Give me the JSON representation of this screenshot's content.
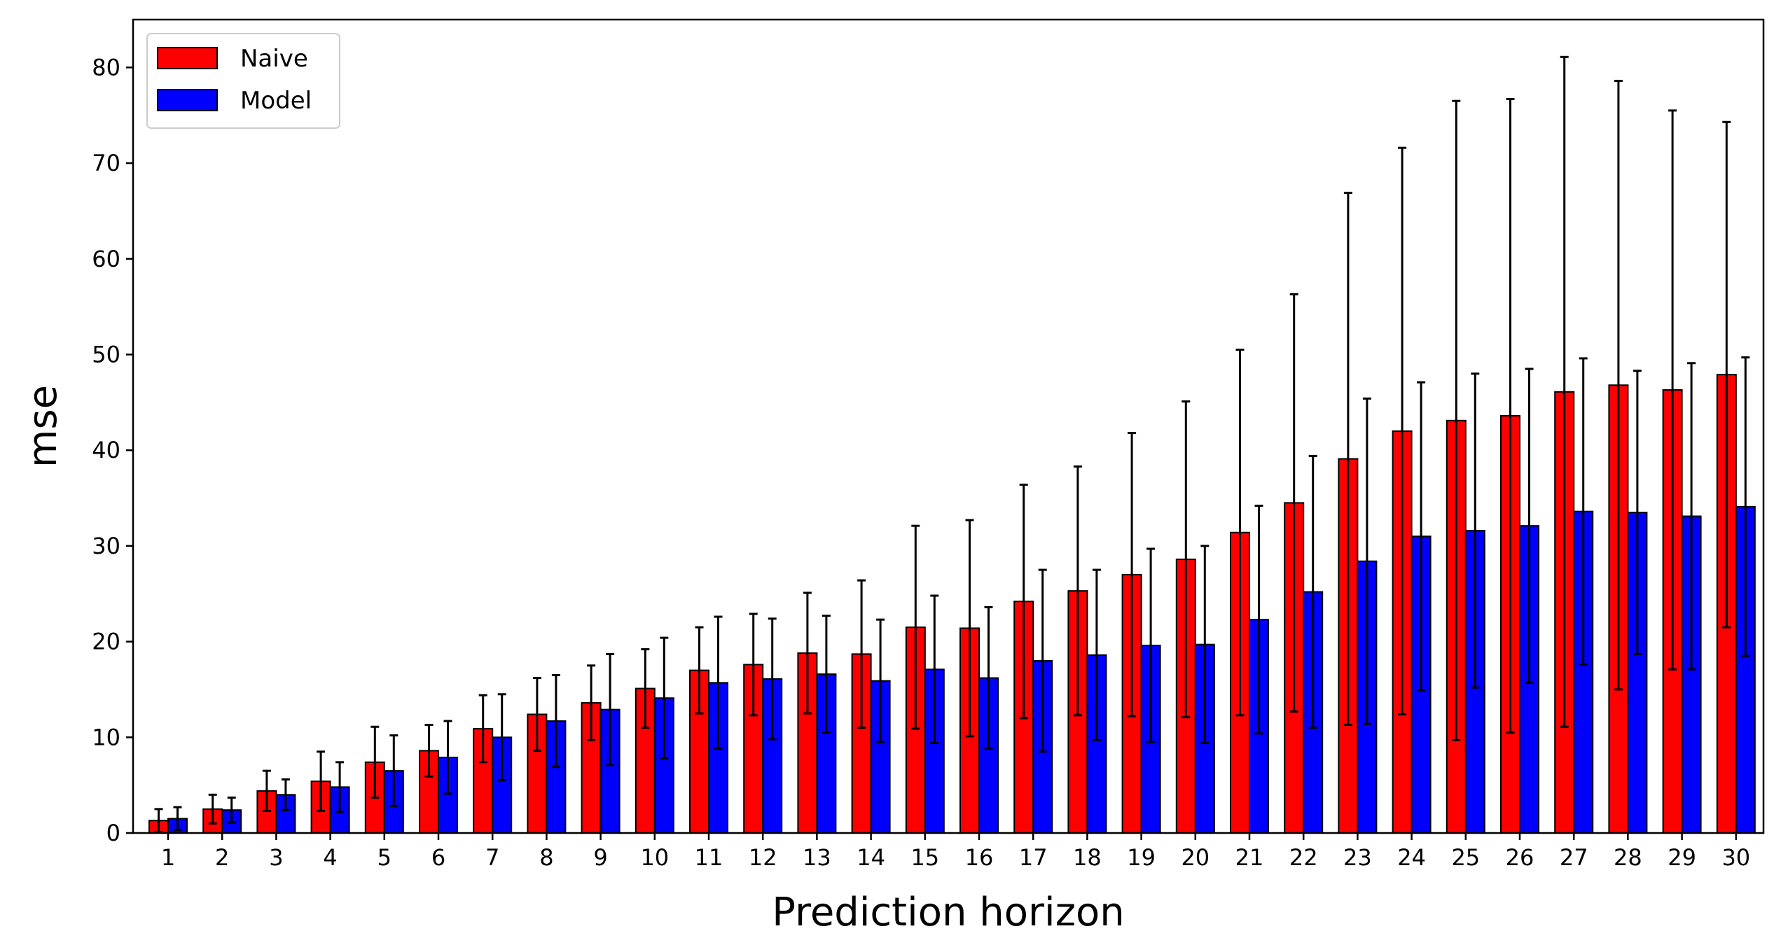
{
  "chart_data": {
    "type": "bar",
    "xlabel": "Prediction horizon",
    "ylabel": "mse",
    "ylim": [
      0,
      85
    ],
    "yticks": [
      0,
      10,
      20,
      30,
      40,
      50,
      60,
      70,
      80
    ],
    "grid": false,
    "legend_position": "top-left",
    "categories": [
      "1",
      "2",
      "3",
      "4",
      "5",
      "6",
      "7",
      "8",
      "9",
      "10",
      "11",
      "12",
      "13",
      "14",
      "15",
      "16",
      "17",
      "18",
      "19",
      "20",
      "21",
      "22",
      "23",
      "24",
      "25",
      "26",
      "27",
      "28",
      "29",
      "30"
    ],
    "series": [
      {
        "name": "Naive",
        "color": "#ff0000",
        "values": [
          1.3,
          2.5,
          4.4,
          5.4,
          7.4,
          8.6,
          10.9,
          12.4,
          13.6,
          15.1,
          17.0,
          17.6,
          18.8,
          18.7,
          21.5,
          21.4,
          24.2,
          25.3,
          27.0,
          28.6,
          31.4,
          34.5,
          39.1,
          42.0,
          43.1,
          43.6,
          46.1,
          46.8,
          46.3,
          47.9
        ],
        "error": [
          1.2,
          1.5,
          2.1,
          3.1,
          3.7,
          2.7,
          3.5,
          3.8,
          3.9,
          4.1,
          4.5,
          5.3,
          6.3,
          7.7,
          10.6,
          11.3,
          12.2,
          13.0,
          14.8,
          16.5,
          19.1,
          21.8,
          27.8,
          29.6,
          33.4,
          33.1,
          35.0,
          31.8,
          29.2,
          26.4
        ]
      },
      {
        "name": "Model",
        "color": "#0000ff",
        "values": [
          1.5,
          2.4,
          4.0,
          4.8,
          6.5,
          7.9,
          10.0,
          11.7,
          12.9,
          14.1,
          15.7,
          16.1,
          16.6,
          15.9,
          17.1,
          16.2,
          18.0,
          18.6,
          19.6,
          19.7,
          22.3,
          25.2,
          28.4,
          31.0,
          31.6,
          32.1,
          33.6,
          33.5,
          33.1,
          34.1
        ],
        "error": [
          1.2,
          1.3,
          1.6,
          2.6,
          3.7,
          3.8,
          4.5,
          4.8,
          5.8,
          6.3,
          6.9,
          6.3,
          6.1,
          6.4,
          7.7,
          7.4,
          9.5,
          8.9,
          10.1,
          10.3,
          11.9,
          14.2,
          17.0,
          16.1,
          16.4,
          16.4,
          16.0,
          14.8,
          16.0,
          15.6
        ]
      }
    ]
  }
}
